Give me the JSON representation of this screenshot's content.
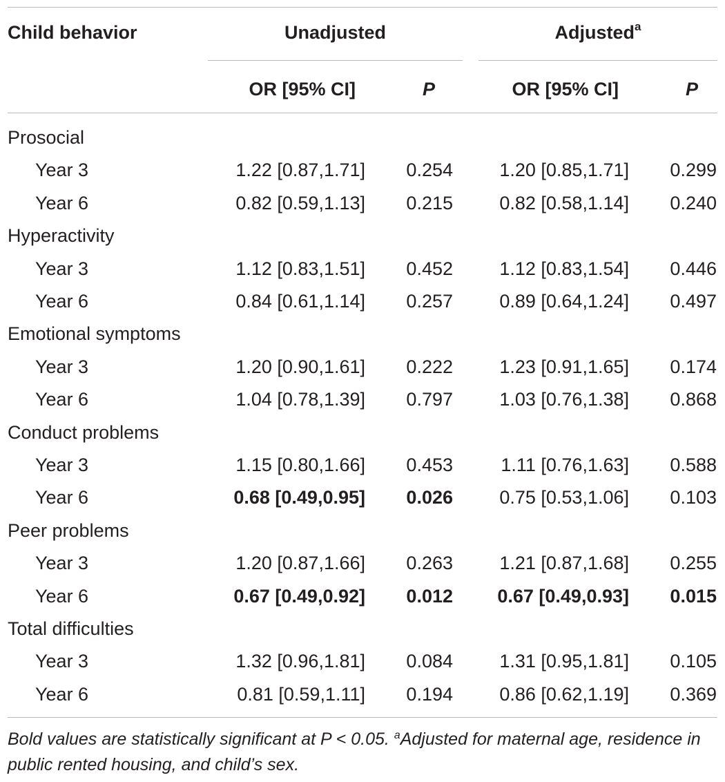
{
  "header": {
    "col_behavior": "Child behavior",
    "group_unadjusted": "Unadjusted",
    "group_adjusted": "Adjusted",
    "adjusted_sup": "a",
    "col_or": "OR [95% CI]",
    "col_p": "P"
  },
  "sections": [
    {
      "name": "Prosocial",
      "rows": [
        {
          "label": "Year 3",
          "or_u": "1.22 [0.87,1.71]",
          "p_u": "0.254",
          "or_a": "1.20 [0.85,1.71]",
          "p_a": "0.299"
        },
        {
          "label": "Year 6",
          "or_u": "0.82 [0.59,1.13]",
          "p_u": "0.215",
          "or_a": "0.82 [0.58,1.14]",
          "p_a": "0.240"
        }
      ]
    },
    {
      "name": "Hyperactivity",
      "rows": [
        {
          "label": "Year 3",
          "or_u": "1.12 [0.83,1.51]",
          "p_u": "0.452",
          "or_a": "1.12 [0.83,1.54]",
          "p_a": "0.446"
        },
        {
          "label": "Year 6",
          "or_u": "0.84 [0.61,1.14]",
          "p_u": "0.257",
          "or_a": "0.89 [0.64,1.24]",
          "p_a": "0.497"
        }
      ]
    },
    {
      "name": "Emotional symptoms",
      "rows": [
        {
          "label": "Year 3",
          "or_u": "1.20 [0.90,1.61]",
          "p_u": "0.222",
          "or_a": "1.23 [0.91,1.65]",
          "p_a": "0.174"
        },
        {
          "label": "Year 6",
          "or_u": "1.04 [0.78,1.39]",
          "p_u": "0.797",
          "or_a": "1.03 [0.76,1.38]",
          "p_a": "0.868"
        }
      ]
    },
    {
      "name": "Conduct problems",
      "rows": [
        {
          "label": "Year 3",
          "or_u": "1.15 [0.80,1.66]",
          "p_u": "0.453",
          "or_a": "1.11 [0.76,1.63]",
          "p_a": "0.588"
        },
        {
          "label": "Year 6",
          "or_u": "0.68 [0.49,0.95]",
          "p_u": "0.026",
          "or_a": "0.75 [0.53,1.06]",
          "p_a": "0.103",
          "bold_u": true
        }
      ]
    },
    {
      "name": "Peer problems",
      "rows": [
        {
          "label": "Year 3",
          "or_u": "1.20 [0.87,1.66]",
          "p_u": "0.263",
          "or_a": "1.21 [0.87,1.68]",
          "p_a": "0.255"
        },
        {
          "label": "Year 6",
          "or_u": "0.67 [0.49,0.92]",
          "p_u": "0.012",
          "or_a": "0.67 [0.49,0.93]",
          "p_a": "0.015",
          "bold_u": true,
          "bold_a": true
        }
      ]
    },
    {
      "name": "Total difficulties",
      "rows": [
        {
          "label": "Year 3",
          "or_u": "1.32 [0.96,1.81]",
          "p_u": "0.084",
          "or_a": "1.31 [0.95,1.81]",
          "p_a": "0.105"
        },
        {
          "label": "Year 6",
          "or_u": "0.81 [0.59,1.11]",
          "p_u": "0.194",
          "or_a": "0.86 [0.62,1.19]",
          "p_a": "0.369"
        }
      ]
    }
  ],
  "footnote": {
    "text1": "Bold values are statistically significant at P < 0.05. ",
    "sup": "a",
    "text2": "Adjusted for maternal age, residence in public rented housing, and child’s sex."
  }
}
